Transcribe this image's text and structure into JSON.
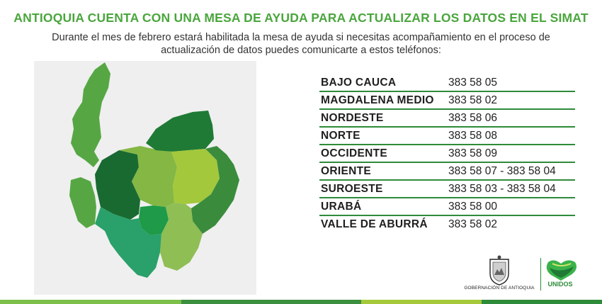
{
  "header": {
    "title": "ANTIOQUIA CUENTA CON UNA MESA DE AYUDA PARA ACTUALIZAR LOS DATOS EN EL SIMAT",
    "subtitle_line1": "Durante el mes de febrero estará habilitada la mesa de ayuda si necesitas acompañamiento en el proceso de",
    "subtitle_line2": "actualización de datos puedes comunicarte a estos teléfonos:"
  },
  "phones": [
    {
      "region": "BAJO CAUCA",
      "phone": "383 58 05"
    },
    {
      "region": "MAGDALENA MEDIO",
      "phone": "383 58 02"
    },
    {
      "region": "NORDESTE",
      "phone": "383 58 06"
    },
    {
      "region": "NORTE",
      "phone": "383 58 08"
    },
    {
      "region": "OCCIDENTE",
      "phone": "383 58 09"
    },
    {
      "region": "ORIENTE",
      "phone": "383 58 07 - 383 58 04"
    },
    {
      "region": "SUROESTE",
      "phone": "383 58 03 - 383 58 04"
    },
    {
      "region": "URABÁ",
      "phone": "383 58 00"
    },
    {
      "region": "VALLE DE ABURRÁ",
      "phone": "383 58 02"
    }
  ],
  "logos": {
    "gobernacion": "GOBERNACIÓN DE ANTIOQUIA",
    "unidos": "UNIDOS"
  },
  "colors": {
    "title_green": "#4aa63d",
    "rule_green": "#2e8b3a",
    "map_background": "#efefef",
    "bottom_bar": [
      "#7cc04a",
      "#3b8f3e",
      "#a5c93a",
      "#2e8b3a"
    ]
  }
}
